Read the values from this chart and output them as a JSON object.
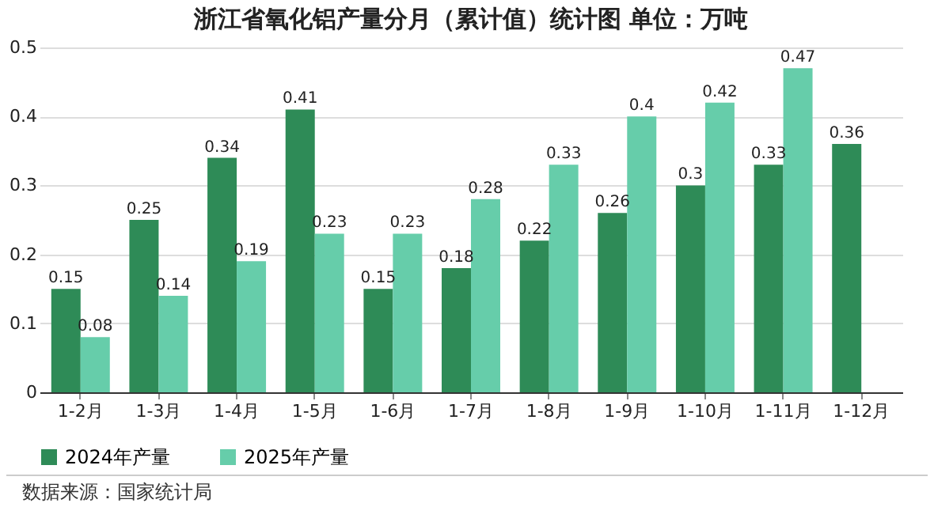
{
  "chart_data": {
    "type": "bar",
    "title": "浙江省氧化铝产量分月（累计值）统计图 单位：万吨",
    "categories": [
      "1-2月",
      "1-3月",
      "1-4月",
      "1-5月",
      "1-6月",
      "1-7月",
      "1-8月",
      "1-9月",
      "1-10月",
      "1-11月",
      "1-12月"
    ],
    "series": [
      {
        "name": "2024年产量",
        "color": "#2e8b57",
        "values": [
          0.15,
          0.25,
          0.34,
          0.41,
          0.15,
          0.18,
          0.22,
          0.26,
          0.3,
          0.33,
          0.36
        ]
      },
      {
        "name": "2025年产量",
        "color": "#66cdaa",
        "values": [
          0.08,
          0.14,
          0.19,
          0.23,
          0.23,
          0.28,
          0.33,
          0.4,
          0.42,
          0.47,
          null
        ]
      }
    ],
    "ylim": [
      0,
      0.5
    ],
    "yticks": [
      0,
      0.1,
      0.2,
      0.3,
      0.4,
      0.5
    ],
    "grid": "y",
    "legend": "bottom",
    "data_labels": true,
    "annotations": [
      "数据来源：国家统计局"
    ]
  }
}
